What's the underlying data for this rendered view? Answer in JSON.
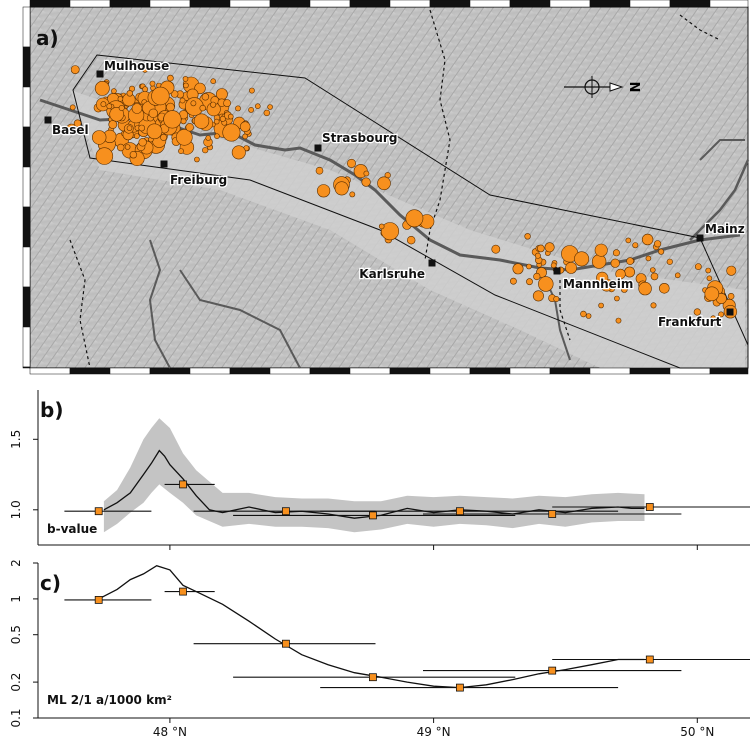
{
  "panels": {
    "a": "a)",
    "b": "b)",
    "c": "c)"
  },
  "map": {
    "cities": [
      {
        "name": "Mulhouse",
        "lon": 7.34,
        "lat": 47.75
      },
      {
        "name": "Basel",
        "lon": 7.59,
        "lat": 47.56
      },
      {
        "name": "Freiburg",
        "lon": 7.85,
        "lat": 47.99
      },
      {
        "name": "Strasbourg",
        "lon": 7.75,
        "lat": 48.58
      },
      {
        "name": "Karlsruhe",
        "lon": 8.4,
        "lat": 49.01
      },
      {
        "name": "Mannheim",
        "lon": 8.47,
        "lat": 49.49
      },
      {
        "name": "Mainz",
        "lon": 8.27,
        "lat": 49.99
      },
      {
        "name": "Frankfurt",
        "lon": 8.68,
        "lat": 50.11
      }
    ],
    "north_label": "N",
    "colors": {
      "events": "#f7901e",
      "relief": "#b9b9b9",
      "rivers": "#555555",
      "outline": "#111111"
    }
  },
  "chart_data": [
    {
      "panel": "b",
      "type": "line",
      "inset_label": "b-value",
      "x_ticks": [
        "48 °N",
        "49 °N",
        "50 °N"
      ],
      "y_ticks": [
        "1.0",
        "1.5"
      ],
      "xlim": [
        47.5,
        50.2
      ],
      "ylim": [
        0.75,
        1.85
      ],
      "series": [
        {
          "values": [
            [
              47.75,
              1.0
            ],
            [
              47.8,
              1.05
            ],
            [
              47.85,
              1.12
            ],
            [
              47.9,
              1.25
            ],
            [
              47.93,
              1.33
            ],
            [
              47.96,
              1.42
            ],
            [
              47.98,
              1.38
            ],
            [
              48.0,
              1.32
            ],
            [
              48.05,
              1.22
            ],
            [
              48.1,
              1.1
            ],
            [
              48.15,
              1.0
            ],
            [
              48.2,
              0.98
            ],
            [
              48.3,
              1.02
            ],
            [
              48.4,
              0.98
            ],
            [
              48.5,
              0.99
            ],
            [
              48.6,
              0.97
            ],
            [
              48.7,
              0.94
            ],
            [
              48.8,
              0.96
            ],
            [
              48.9,
              1.01
            ],
            [
              49.0,
              0.98
            ],
            [
              49.1,
              1.0
            ],
            [
              49.2,
              0.99
            ],
            [
              49.3,
              0.97
            ],
            [
              49.4,
              1.0
            ],
            [
              49.5,
              0.98
            ],
            [
              49.6,
              1.01
            ],
            [
              49.7,
              1.02
            ],
            [
              49.75,
              1.01
            ],
            [
              49.8,
              1.01
            ]
          ]
        }
      ],
      "band": {
        "upper": [
          [
            47.75,
            1.06
          ],
          [
            47.8,
            1.14
          ],
          [
            47.85,
            1.3
          ],
          [
            47.9,
            1.5
          ],
          [
            47.93,
            1.58
          ],
          [
            47.96,
            1.65
          ],
          [
            48.0,
            1.58
          ],
          [
            48.05,
            1.4
          ],
          [
            48.1,
            1.28
          ],
          [
            48.2,
            1.12
          ],
          [
            48.3,
            1.12
          ],
          [
            48.4,
            1.09
          ],
          [
            48.5,
            1.08
          ],
          [
            48.6,
            1.08
          ],
          [
            48.7,
            1.06
          ],
          [
            48.8,
            1.06
          ],
          [
            48.9,
            1.1
          ],
          [
            49.0,
            1.09
          ],
          [
            49.1,
            1.1
          ],
          [
            49.2,
            1.09
          ],
          [
            49.3,
            1.08
          ],
          [
            49.4,
            1.1
          ],
          [
            49.5,
            1.09
          ],
          [
            49.6,
            1.11
          ],
          [
            49.7,
            1.12
          ],
          [
            49.8,
            1.11
          ]
        ],
        "lower": [
          [
            47.75,
            0.84
          ],
          [
            47.8,
            0.9
          ],
          [
            47.85,
            0.98
          ],
          [
            47.9,
            1.05
          ],
          [
            47.93,
            1.12
          ],
          [
            47.96,
            1.18
          ],
          [
            48.0,
            1.12
          ],
          [
            48.05,
            1.05
          ],
          [
            48.1,
            0.96
          ],
          [
            48.2,
            0.88
          ],
          [
            48.3,
            0.9
          ],
          [
            48.4,
            0.88
          ],
          [
            48.5,
            0.88
          ],
          [
            48.6,
            0.87
          ],
          [
            48.7,
            0.84
          ],
          [
            48.8,
            0.86
          ],
          [
            48.9,
            0.9
          ],
          [
            49.0,
            0.88
          ],
          [
            49.1,
            0.9
          ],
          [
            49.2,
            0.89
          ],
          [
            49.3,
            0.87
          ],
          [
            49.4,
            0.9
          ],
          [
            49.5,
            0.88
          ],
          [
            49.6,
            0.91
          ],
          [
            49.7,
            0.92
          ],
          [
            49.8,
            0.92
          ]
        ]
      },
      "points": [
        {
          "x": 47.73,
          "y": 0.99,
          "xerr": [
            47.6,
            47.93
          ]
        },
        {
          "x": 48.05,
          "y": 1.18,
          "xerr": [
            47.98,
            48.17
          ]
        },
        {
          "x": 48.44,
          "y": 0.99,
          "xerr": [
            48.09,
            48.78
          ]
        },
        {
          "x": 48.77,
          "y": 0.96,
          "xerr": [
            48.24,
            49.31
          ]
        },
        {
          "x": 49.1,
          "y": 0.99,
          "xerr": [
            48.57,
            49.7
          ]
        },
        {
          "x": 49.45,
          "y": 0.97,
          "xerr": [
            48.96,
            49.94
          ]
        },
        {
          "x": 49.82,
          "y": 1.02,
          "xerr": [
            49.45,
            50.2
          ]
        }
      ]
    },
    {
      "panel": "c",
      "type": "line",
      "inset_label": "ML 2/1 a/1000 km²",
      "x_ticks": [
        "48 °N",
        "49 °N",
        "50 °N"
      ],
      "y_ticks": [
        "0.1",
        "0.2",
        "0.5",
        "1",
        "2"
      ],
      "y_scale": "log",
      "xlim": [
        47.5,
        50.2
      ],
      "ylim": [
        0.1,
        2
      ],
      "series": [
        {
          "values": [
            [
              47.73,
              1.0
            ],
            [
              47.8,
              1.2
            ],
            [
              47.85,
              1.45
            ],
            [
              47.9,
              1.62
            ],
            [
              47.95,
              1.9
            ],
            [
              48.0,
              1.75
            ],
            [
              48.05,
              1.3
            ],
            [
              48.1,
              1.15
            ],
            [
              48.2,
              0.9
            ],
            [
              48.3,
              0.65
            ],
            [
              48.4,
              0.46
            ],
            [
              48.5,
              0.34
            ],
            [
              48.6,
              0.28
            ],
            [
              48.7,
              0.24
            ],
            [
              48.8,
              0.22
            ],
            [
              48.9,
              0.2
            ],
            [
              49.0,
              0.185
            ],
            [
              49.1,
              0.18
            ],
            [
              49.2,
              0.19
            ],
            [
              49.3,
              0.21
            ],
            [
              49.4,
              0.235
            ],
            [
              49.5,
              0.255
            ],
            [
              49.6,
              0.28
            ],
            [
              49.7,
              0.31
            ],
            [
              49.8,
              0.31
            ]
          ]
        }
      ],
      "points": [
        {
          "x": 47.73,
          "y": 0.98,
          "xerr": [
            47.6,
            47.93
          ]
        },
        {
          "x": 48.05,
          "y": 1.15,
          "xerr": [
            47.98,
            48.17
          ]
        },
        {
          "x": 48.44,
          "y": 0.42,
          "xerr": [
            48.09,
            48.78
          ]
        },
        {
          "x": 48.77,
          "y": 0.22,
          "xerr": [
            48.24,
            49.31
          ]
        },
        {
          "x": 49.1,
          "y": 0.18,
          "xerr": [
            48.57,
            49.7
          ]
        },
        {
          "x": 49.45,
          "y": 0.25,
          "xerr": [
            48.96,
            49.94
          ]
        },
        {
          "x": 49.82,
          "y": 0.31,
          "xerr": [
            49.45,
            50.2
          ]
        }
      ]
    }
  ]
}
